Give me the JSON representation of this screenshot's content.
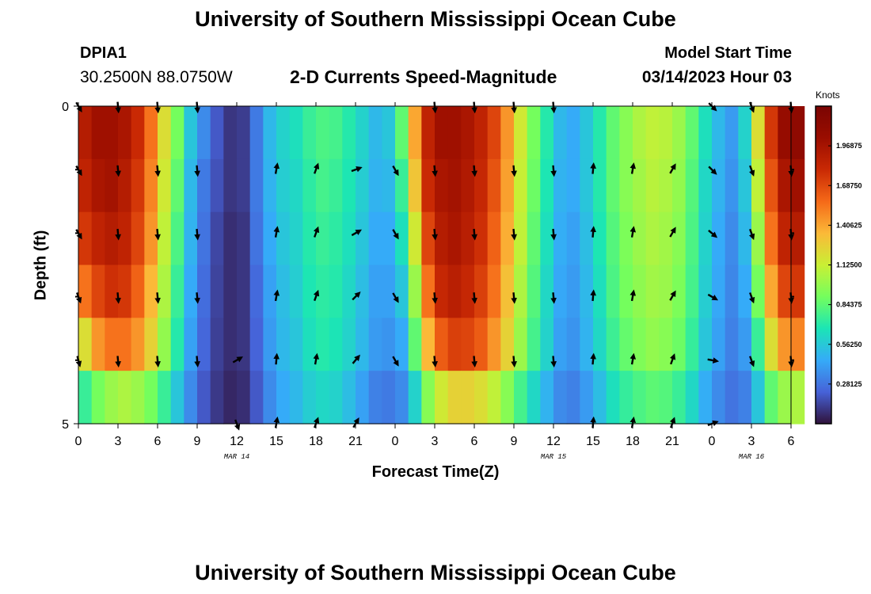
{
  "header": {
    "title": "University of Southern Mississippi Ocean Cube",
    "station_id": "DPIA1",
    "station_coords": "30.2500N  88.0750W",
    "plot_subtitle": "2-D Currents Speed-Magnitude",
    "model_start_label": "Model Start Time",
    "model_start_value": "03/14/2023 Hour 03"
  },
  "footer": {
    "title": "University of Southern Mississippi Ocean Cube"
  },
  "colorbar": {
    "unit": "Knots",
    "range": [
      0,
      2.25
    ],
    "tick_values": [
      0.28125,
      0.5625,
      0.84375,
      1.125,
      1.40625,
      1.6875,
      1.96875
    ],
    "tick_labels": [
      "0.28125",
      "0.56250",
      "0.84375",
      "1.12500",
      "1.40625",
      "1.68750",
      "1.96875"
    ]
  },
  "chart_data": {
    "type": "heatmap",
    "title": "2-D Currents Speed-Magnitude",
    "xlabel": "Forecast Time(Z)",
    "ylabel": "Depth (ft)",
    "x_unit": "hours from 03/14 00Z",
    "xlim": [
      0,
      54
    ],
    "ylim": [
      5,
      0
    ],
    "x_ticks": [
      0,
      3,
      6,
      9,
      12,
      15,
      18,
      21,
      24,
      27,
      30,
      33,
      36,
      39,
      42,
      45,
      48,
      51,
      54
    ],
    "x_tick_labels": [
      "0",
      "3",
      "6",
      "9",
      "12",
      "15",
      "18",
      "21",
      "0",
      "3",
      "6",
      "9",
      "12",
      "15",
      "18",
      "21",
      "0",
      "3",
      "6"
    ],
    "y_ticks": [
      0,
      5
    ],
    "y_tick_labels": [
      "0",
      "5"
    ],
    "date_labels": [
      {
        "label": "MAR 14",
        "x": 12
      },
      {
        "label": "MAR 15",
        "x": 36
      },
      {
        "label": "MAR 16",
        "x": 51
      }
    ],
    "depth_levels": [
      0,
      1,
      2,
      3,
      4,
      5
    ],
    "speed_knots_by_hour": [
      [
        1.9,
        2.0,
        2.0,
        1.95,
        1.8,
        1.55,
        1.2,
        0.9,
        0.55,
        0.35,
        0.2,
        0.1,
        0.12,
        0.3,
        0.5,
        0.6,
        0.65,
        0.75,
        0.8,
        0.78,
        0.7,
        0.6,
        0.5,
        0.55,
        0.85,
        1.4,
        1.85,
        2.0,
        2.0,
        1.95,
        1.85,
        1.7,
        1.45,
        1.15,
        0.9,
        0.7,
        0.5,
        0.45,
        0.55,
        0.7,
        0.85,
        0.95,
        1.05,
        1.1,
        1.08,
        1.0,
        0.85,
        0.65,
        0.5,
        0.4,
        0.6,
        1.2,
        1.75,
        2.05,
        2.1
      ],
      [
        1.85,
        1.95,
        1.98,
        1.9,
        1.75,
        1.5,
        1.15,
        0.85,
        0.5,
        0.3,
        0.18,
        0.1,
        0.12,
        0.3,
        0.48,
        0.58,
        0.62,
        0.72,
        0.78,
        0.75,
        0.68,
        0.58,
        0.48,
        0.5,
        0.75,
        1.3,
        1.8,
        1.95,
        1.98,
        1.92,
        1.82,
        1.65,
        1.42,
        1.12,
        0.88,
        0.68,
        0.48,
        0.45,
        0.55,
        0.7,
        0.85,
        0.95,
        1.02,
        1.08,
        1.05,
        0.98,
        0.82,
        0.62,
        0.48,
        0.38,
        0.55,
        1.1,
        1.65,
        1.95,
        2.0
      ],
      [
        1.75,
        1.85,
        1.9,
        1.85,
        1.7,
        1.45,
        1.1,
        0.8,
        0.48,
        0.28,
        0.15,
        0.08,
        0.1,
        0.28,
        0.45,
        0.55,
        0.6,
        0.7,
        0.75,
        0.72,
        0.65,
        0.55,
        0.45,
        0.45,
        0.65,
        1.15,
        1.7,
        1.9,
        1.95,
        1.88,
        1.78,
        1.6,
        1.38,
        1.1,
        0.85,
        0.65,
        0.46,
        0.42,
        0.52,
        0.68,
        0.82,
        0.92,
        1.0,
        1.05,
        1.02,
        0.95,
        0.8,
        0.6,
        0.45,
        0.35,
        0.5,
        1.0,
        1.55,
        1.85,
        1.9
      ],
      [
        1.55,
        1.7,
        1.78,
        1.75,
        1.6,
        1.35,
        1.05,
        0.75,
        0.45,
        0.26,
        0.14,
        0.08,
        0.1,
        0.25,
        0.42,
        0.52,
        0.58,
        0.68,
        0.72,
        0.7,
        0.62,
        0.52,
        0.42,
        0.42,
        0.55,
        1.0,
        1.55,
        1.82,
        1.88,
        1.82,
        1.72,
        1.55,
        1.32,
        1.05,
        0.82,
        0.62,
        0.44,
        0.4,
        0.5,
        0.65,
        0.8,
        0.9,
        0.97,
        1.02,
        1.0,
        0.92,
        0.78,
        0.58,
        0.44,
        0.34,
        0.45,
        0.9,
        1.4,
        1.7,
        1.75
      ],
      [
        1.2,
        1.45,
        1.55,
        1.55,
        1.45,
        1.25,
        0.98,
        0.7,
        0.42,
        0.24,
        0.13,
        0.08,
        0.1,
        0.23,
        0.4,
        0.5,
        0.55,
        0.65,
        0.7,
        0.67,
        0.6,
        0.5,
        0.4,
        0.38,
        0.45,
        0.85,
        1.35,
        1.62,
        1.72,
        1.7,
        1.62,
        1.45,
        1.25,
        1.0,
        0.78,
        0.6,
        0.42,
        0.38,
        0.48,
        0.62,
        0.76,
        0.86,
        0.93,
        0.98,
        0.95,
        0.88,
        0.74,
        0.55,
        0.42,
        0.32,
        0.4,
        0.75,
        1.2,
        1.45,
        1.5
      ],
      [
        0.75,
        0.9,
        1.0,
        1.05,
        1.0,
        0.9,
        0.75,
        0.55,
        0.35,
        0.2,
        0.11,
        0.06,
        0.08,
        0.2,
        0.35,
        0.45,
        0.5,
        0.58,
        0.62,
        0.6,
        0.52,
        0.42,
        0.32,
        0.3,
        0.35,
        0.6,
        0.95,
        1.15,
        1.25,
        1.25,
        1.2,
        1.1,
        0.95,
        0.78,
        0.62,
        0.48,
        0.35,
        0.32,
        0.4,
        0.52,
        0.65,
        0.74,
        0.8,
        0.84,
        0.82,
        0.75,
        0.62,
        0.46,
        0.35,
        0.28,
        0.32,
        0.55,
        0.85,
        1.0,
        1.05
      ]
    ],
    "vector_times": [
      0,
      3,
      6,
      9,
      12,
      15,
      18,
      21,
      24,
      27,
      30,
      33,
      36,
      39,
      42,
      45,
      48,
      51,
      54
    ],
    "vector_depths": [
      0,
      1,
      2,
      3,
      4,
      5
    ],
    "vector_directions_deg": [
      [
        150,
        175,
        175,
        175,
        null,
        null,
        null,
        null,
        null,
        175,
        175,
        175,
        175,
        null,
        null,
        null,
        135,
        160,
        175
      ],
      [
        150,
        175,
        175,
        175,
        null,
        10,
        20,
        70,
        150,
        175,
        175,
        175,
        175,
        5,
        10,
        30,
        135,
        160,
        175
      ],
      [
        150,
        175,
        175,
        175,
        null,
        10,
        20,
        60,
        150,
        175,
        175,
        175,
        175,
        5,
        10,
        30,
        130,
        160,
        175
      ],
      [
        160,
        175,
        175,
        175,
        null,
        10,
        20,
        45,
        150,
        175,
        175,
        175,
        175,
        5,
        10,
        30,
        120,
        160,
        175
      ],
      [
        165,
        175,
        175,
        175,
        60,
        5,
        10,
        40,
        150,
        175,
        175,
        175,
        175,
        5,
        10,
        20,
        100,
        160,
        175
      ],
      [
        null,
        null,
        null,
        null,
        160,
        10,
        20,
        30,
        null,
        null,
        null,
        null,
        null,
        5,
        10,
        20,
        70,
        null,
        null
      ]
    ]
  }
}
